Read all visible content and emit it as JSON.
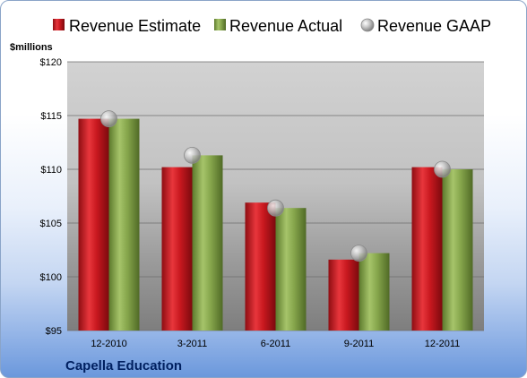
{
  "chart_data": {
    "type": "bar",
    "title": "",
    "company": "Capella Education",
    "ylabel": "$millions",
    "xlabel": "",
    "ylim": [
      95,
      120
    ],
    "y_ticks": [
      95,
      100,
      105,
      110,
      115,
      120
    ],
    "y_tick_labels": [
      "$95",
      "$100",
      "$105",
      "$110",
      "$115",
      "$120"
    ],
    "categories": [
      "12-2010",
      "3-2011",
      "6-2011",
      "9-2011",
      "12-2011"
    ],
    "series": [
      {
        "name": "Revenue Estimate",
        "kind": "bar",
        "color": "#c0141c",
        "values": [
          114.7,
          110.2,
          106.9,
          101.6,
          110.2
        ]
      },
      {
        "name": "Revenue Actual",
        "kind": "bar",
        "color": "#7f9f43",
        "values": [
          114.7,
          111.3,
          106.4,
          102.2,
          110.0
        ]
      },
      {
        "name": "Revenue GAAP",
        "kind": "marker",
        "color": "#b0b0b0",
        "values": [
          114.7,
          111.3,
          106.4,
          102.2,
          110.0
        ]
      }
    ],
    "grid": true,
    "legend_position": "top"
  }
}
